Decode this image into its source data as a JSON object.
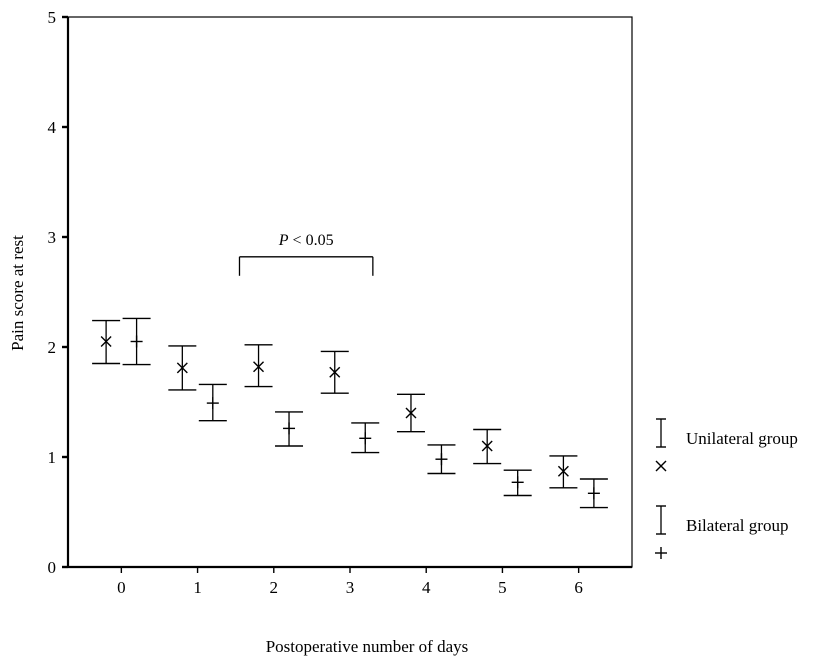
{
  "chart_data": {
    "type": "scatter",
    "title": "",
    "xlabel": "Postoperative number of days",
    "ylabel": "Pain score at rest",
    "xlim": [
      -0.7,
      6.7
    ],
    "ylim": [
      0,
      5
    ],
    "x_ticks": [
      "0",
      "1",
      "2",
      "3",
      "4",
      "5",
      "6"
    ],
    "y_ticks": [
      "0",
      "1",
      "2",
      "3",
      "4",
      "5"
    ],
    "grid": false,
    "legend_position": "right",
    "series": [
      {
        "name": "Unilateral group",
        "marker": "×",
        "points": [
          {
            "day": 0,
            "mean": 2.05,
            "lower": 1.85,
            "upper": 2.24
          },
          {
            "day": 1,
            "mean": 1.81,
            "lower": 1.61,
            "upper": 2.01
          },
          {
            "day": 2,
            "mean": 1.82,
            "lower": 1.64,
            "upper": 2.02
          },
          {
            "day": 3,
            "mean": 1.77,
            "lower": 1.58,
            "upper": 1.96
          },
          {
            "day": 4,
            "mean": 1.4,
            "lower": 1.23,
            "upper": 1.57
          },
          {
            "day": 5,
            "mean": 1.1,
            "lower": 0.94,
            "upper": 1.25
          },
          {
            "day": 6,
            "mean": 0.87,
            "lower": 0.72,
            "upper": 1.01
          }
        ]
      },
      {
        "name": "Bilateral group",
        "marker": "+",
        "points": [
          {
            "day": 0,
            "mean": 2.05,
            "lower": 1.84,
            "upper": 2.26
          },
          {
            "day": 1,
            "mean": 1.49,
            "lower": 1.33,
            "upper": 1.66
          },
          {
            "day": 2,
            "mean": 1.26,
            "lower": 1.1,
            "upper": 1.41
          },
          {
            "day": 3,
            "mean": 1.17,
            "lower": 1.04,
            "upper": 1.31
          },
          {
            "day": 4,
            "mean": 0.98,
            "lower": 0.85,
            "upper": 1.11
          },
          {
            "day": 5,
            "mean": 0.77,
            "lower": 0.65,
            "upper": 0.88
          },
          {
            "day": 6,
            "mean": 0.67,
            "lower": 0.54,
            "upper": 0.8
          }
        ]
      }
    ],
    "annotation": {
      "text": "P < 0.05",
      "x_start": 1.55,
      "x_end": 3.3,
      "y": 2.82
    }
  },
  "colors": {
    "ink": "#000000",
    "background": "#ffffff"
  }
}
